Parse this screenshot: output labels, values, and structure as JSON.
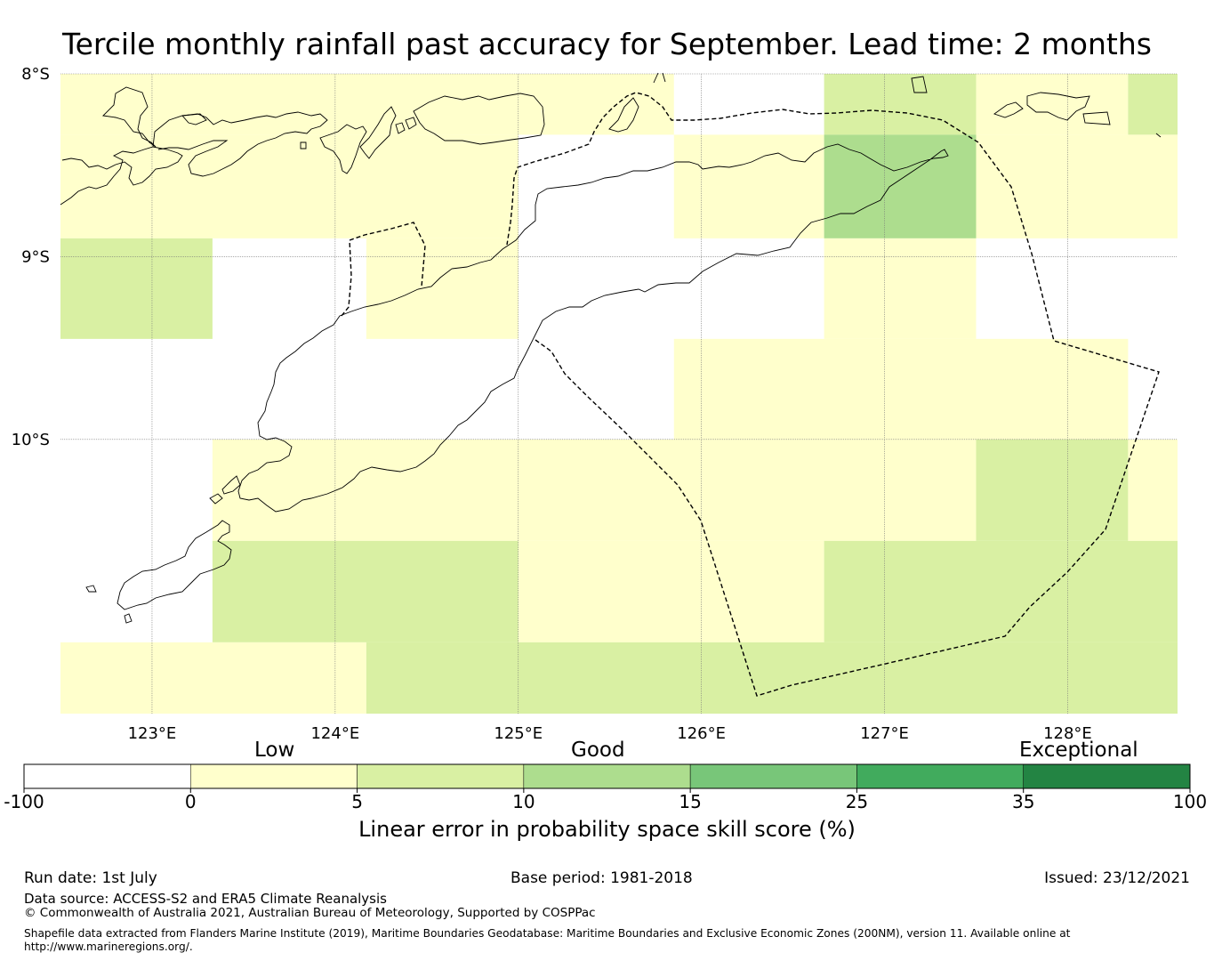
{
  "title": "Tercile monthly rainfall past accuracy for September. Lead time: 2 months",
  "map": {
    "lat_labels": [
      "8°S",
      "9°S",
      "10°S"
    ],
    "lon_labels": [
      "123°E",
      "124°E",
      "125°E",
      "126°E",
      "127°E",
      "128°E"
    ],
    "lat_ticks": [
      8,
      9,
      10
    ],
    "lon_ticks": [
      123,
      124,
      125,
      126,
      127,
      128
    ],
    "extent": {
      "lon_min": 122.5,
      "lon_max": 128.6,
      "lat_min": -11.5,
      "lat_max": -8.0
    },
    "colors": {
      "white": "#ffffff",
      "c0_5": "#ffffcc",
      "c5_10": "#d9f0a3",
      "c10_15": "#addd8e"
    },
    "grid_cells": [
      {
        "lon": [
          122.5,
          125.85
        ],
        "lat": [
          -8.0,
          -8.333
        ],
        "fill": "c0_5"
      },
      {
        "lon": [
          126.67,
          127.5
        ],
        "lat": [
          -8.0,
          -8.333
        ],
        "fill": "c5_10"
      },
      {
        "lon": [
          127.5,
          128.33
        ],
        "lat": [
          -8.0,
          -8.333
        ],
        "fill": "c0_5"
      },
      {
        "lon": [
          128.33,
          128.6
        ],
        "lat": [
          -8.0,
          -8.333
        ],
        "fill": "c5_10"
      },
      {
        "lon": [
          122.5,
          125.0
        ],
        "lat": [
          -8.333,
          -8.9
        ],
        "fill": "c0_5"
      },
      {
        "lon": [
          125.85,
          126.67
        ],
        "lat": [
          -8.333,
          -8.9
        ],
        "fill": "c0_5"
      },
      {
        "lon": [
          126.67,
          127.5
        ],
        "lat": [
          -8.333,
          -8.9
        ],
        "fill": "c10_15"
      },
      {
        "lon": [
          127.5,
          128.6
        ],
        "lat": [
          -8.333,
          -8.9
        ],
        "fill": "c0_5"
      },
      {
        "lon": [
          122.5,
          123.33
        ],
        "lat": [
          -8.9,
          -9.45
        ],
        "fill": "c5_10"
      },
      {
        "lon": [
          124.17,
          125.0
        ],
        "lat": [
          -8.9,
          -9.45
        ],
        "fill": "c0_5"
      },
      {
        "lon": [
          126.67,
          127.5
        ],
        "lat": [
          -8.9,
          -9.45
        ],
        "fill": "c0_5"
      },
      {
        "lon": [
          125.85,
          128.33
        ],
        "lat": [
          -9.45,
          -10.0
        ],
        "fill": "c0_5"
      },
      {
        "lon": [
          123.33,
          127.5
        ],
        "lat": [
          -10.0,
          -10.555
        ],
        "fill": "c0_5"
      },
      {
        "lon": [
          127.5,
          128.33
        ],
        "lat": [
          -10.0,
          -10.555
        ],
        "fill": "c5_10"
      },
      {
        "lon": [
          128.33,
          128.6
        ],
        "lat": [
          -10.0,
          -10.555
        ],
        "fill": "c0_5"
      },
      {
        "lon": [
          123.33,
          125.0
        ],
        "lat": [
          -10.555,
          -11.11
        ],
        "fill": "c5_10"
      },
      {
        "lon": [
          125.0,
          126.67
        ],
        "lat": [
          -10.555,
          -11.11
        ],
        "fill": "c0_5"
      },
      {
        "lon": [
          126.67,
          128.6
        ],
        "lat": [
          -10.555,
          -11.11
        ],
        "fill": "c5_10"
      },
      {
        "lon": [
          122.5,
          124.17
        ],
        "lat": [
          -11.11,
          -11.5
        ],
        "fill": "c0_5"
      },
      {
        "lon": [
          124.17,
          128.6
        ],
        "lat": [
          -11.11,
          -11.5
        ],
        "fill": "c5_10"
      }
    ]
  },
  "colorbar": {
    "categories": [
      "Low",
      "Good",
      "Exceptional"
    ],
    "ticks": [
      "-100",
      "0",
      "5",
      "10",
      "15",
      "25",
      "35",
      "100"
    ],
    "colors": [
      "#ffffff",
      "#ffffcc",
      "#d9f0a3",
      "#addd8e",
      "#78c679",
      "#41ab5d",
      "#238443"
    ],
    "label": "Linear error in probability space skill score (%)"
  },
  "footer": {
    "run_date": "Run date: 1st July",
    "base_period": "Base period: 1981-2018",
    "issued": "Issued: 23/12/2021",
    "data_source": "Data source: ACCESS-S2 and ERA5 Climate Reanalysis",
    "copyright": "© Commonwealth of Australia 2021, Australian Bureau of Meteorology, Supported by COSPPac",
    "shapefile_line1": "Shapefile data extracted from Flanders Marine Institute (2019), Maritime Boundaries Geodatabase: Maritime Boundaries and Exclusive Economic Zones (200NM), version 11. Available online at",
    "shapefile_line2": "http://www.marineregions.org/."
  }
}
